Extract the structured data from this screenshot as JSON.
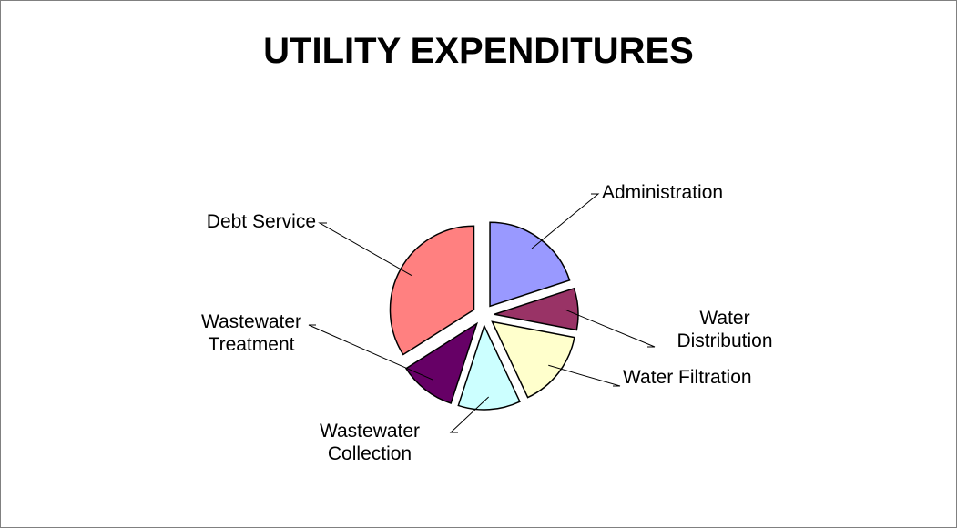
{
  "chart_data": {
    "type": "pie",
    "title": "UTILITY EXPENDITURES",
    "categories": [
      "Administration",
      "Water Distribution",
      "Water Filtration",
      "Wastewater Collection",
      "Wastewater Treatment",
      "Debt Service"
    ],
    "values": [
      20,
      8,
      15,
      12,
      11,
      34
    ],
    "colors": [
      "#9999ff",
      "#993366",
      "#ffffcc",
      "#ccffff",
      "#660066",
      "#ff8080"
    ]
  }
}
